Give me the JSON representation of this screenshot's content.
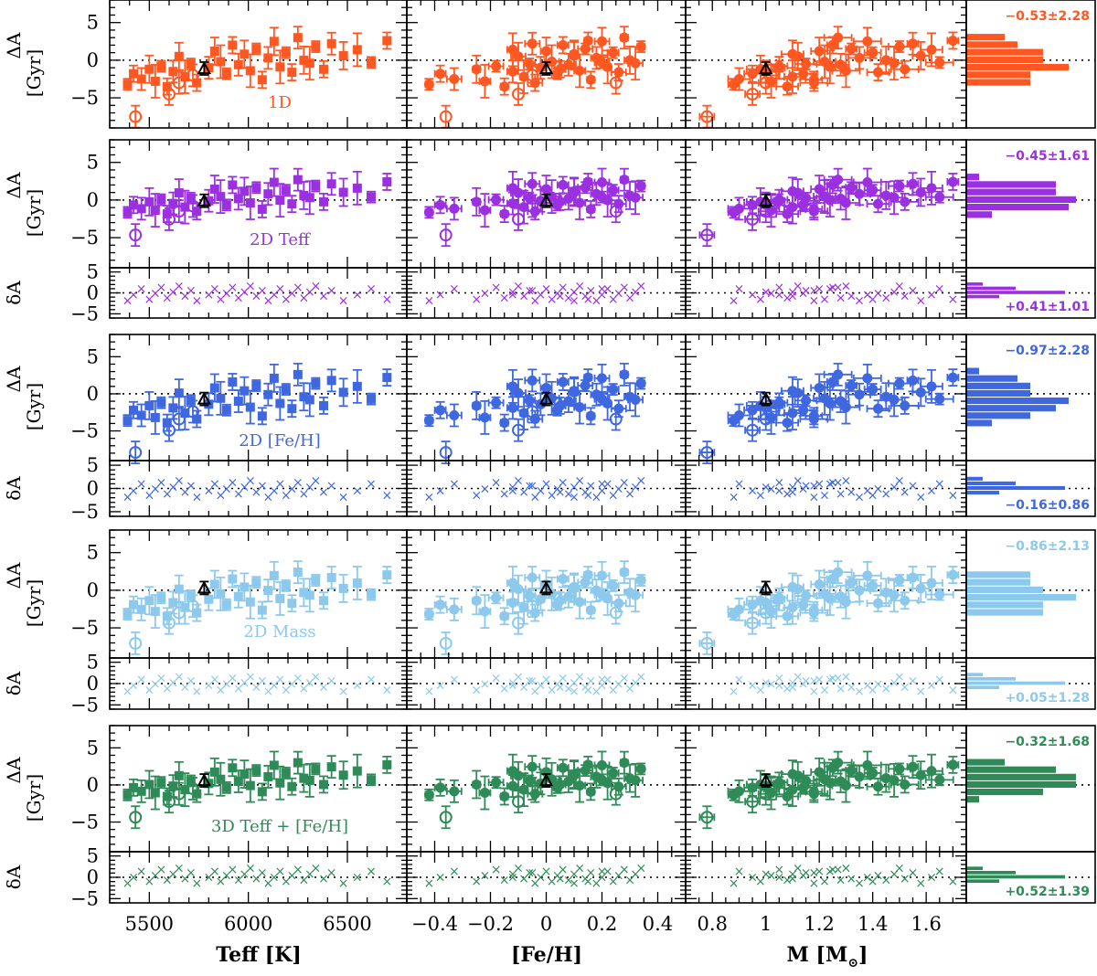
{
  "colors": {
    "1D": "#ff5722",
    "2D_Teff": "#9b30e0",
    "2D_FeH": "#3f67e0",
    "2D_Mass": "#8cc9ec",
    "3D": "#2e8b57",
    "sun": "#000000"
  },
  "xlabels": {
    "teff": "Teff [K]",
    "feh": "[Fe/H]",
    "mass": "M [M",
    "mass_suffix": "]",
    "sun_symbol": "⊙"
  },
  "ylabels": {
    "DeltaA": "ΔA",
    "unit": "[Gyr]",
    "deltaA": "δA"
  },
  "ticks": {
    "teff": [
      "5500",
      "6000",
      "6500"
    ],
    "feh": [
      "−0.4",
      "−0.2",
      "0",
      "0.2",
      "0.4"
    ],
    "mass": [
      "0.8",
      "1",
      "1.2",
      "1.4",
      "1.6"
    ],
    "DeltaA": [
      "5",
      "0",
      "−5"
    ],
    "deltaA": [
      "5",
      "0",
      "−5"
    ]
  },
  "rows": [
    {
      "key": "1D",
      "label": "1D",
      "delta_stat": "−0.53±2.28",
      "resid_stat": ""
    },
    {
      "key": "2D_Teff",
      "label": "2D Teff",
      "delta_stat": "−0.45±1.61",
      "resid_stat": "+0.41±1.01"
    },
    {
      "key": "2D_FeH",
      "label": "2D [Fe/H]",
      "delta_stat": "−0.97±2.28",
      "resid_stat": "−0.16±0.86"
    },
    {
      "key": "2D_Mass",
      "label": "2D Mass",
      "delta_stat": "−0.86±2.13",
      "resid_stat": "+0.05±1.28"
    },
    {
      "key": "3D",
      "label": "3D Teff + [Fe/H]",
      "delta_stat": "−0.32±1.68",
      "resid_stat": "+0.52±1.39"
    }
  ],
  "chart_data": [
    {
      "type": "scatter",
      "description_of_axes": "Columns share x axes; each model row has a ΔA panel and (except 1D) a δA residual panel plus marginal histograms",
      "x_axes": {
        "teff": {
          "label": "Teff [K]",
          "range": [
            5300,
            6800
          ],
          "ticks": [
            5500,
            6000,
            6500
          ]
        },
        "feh": {
          "label": "[Fe/H]",
          "range": [
            -0.5,
            0.5
          ],
          "ticks": [
            -0.4,
            -0.2,
            0,
            0.2,
            0.4
          ]
        },
        "mass": {
          "label": "M [M⊙]",
          "range": [
            0.7,
            1.75
          ],
          "ticks": [
            0.8,
            1.0,
            1.2,
            1.4,
            1.6
          ]
        }
      },
      "y_axes": {
        "DeltaA": {
          "label": "ΔA [Gyr]",
          "range": [
            -9,
            8
          ],
          "ticks": [
            -5,
            0,
            5
          ]
        },
        "deltaA": {
          "label": "δA",
          "range": [
            -6,
            6
          ],
          "ticks": [
            -5,
            0,
            5
          ]
        }
      },
      "series": [
        {
          "name": "1D",
          "DeltaA_mean_std": "−0.53±2.28"
        },
        {
          "name": "2D Teff",
          "DeltaA_mean_std": "−0.45±1.61",
          "deltaA_mean_std": "+0.41±1.01"
        },
        {
          "name": "2D [Fe/H]",
          "DeltaA_mean_std": "−0.97±2.28",
          "deltaA_mean_std": "−0.16±0.86"
        },
        {
          "name": "2D Mass",
          "DeltaA_mean_std": "−0.86±2.13",
          "deltaA_mean_std": "+0.05±1.28"
        },
        {
          "name": "3D Teff + [Fe/H]",
          "DeltaA_mean_std": "−0.32±1.68",
          "deltaA_mean_std": "+0.52±1.39"
        }
      ],
      "stars": [
        {
          "teff": 5390,
          "feh": -0.42,
          "mass": 0.88,
          "dA": -3.2
        },
        {
          "teff": 5420,
          "feh": -0.38,
          "mass": 0.95,
          "dA": -1.8
        },
        {
          "teff": 5460,
          "feh": -0.33,
          "mass": 0.9,
          "dA": -2.5
        },
        {
          "teff": 5500,
          "feh": -0.25,
          "mass": 0.98,
          "dA": -1.2
        },
        {
          "teff": 5530,
          "feh": -0.22,
          "mass": 1.02,
          "dA": -2.8
        },
        {
          "teff": 5560,
          "feh": -0.18,
          "mass": 1.05,
          "dA": -0.8
        },
        {
          "teff": 5590,
          "feh": -0.15,
          "mass": 1.08,
          "dA": -3.5
        },
        {
          "teff": 5620,
          "feh": -0.12,
          "mass": 1.0,
          "dA": -1.5
        },
        {
          "teff": 5650,
          "feh": -0.1,
          "mass": 1.12,
          "dA": 0.5
        },
        {
          "teff": 5680,
          "feh": -0.08,
          "mass": 1.1,
          "dA": -2.2
        },
        {
          "teff": 5710,
          "feh": -0.06,
          "mass": 1.15,
          "dA": -0.5
        },
        {
          "teff": 5740,
          "feh": -0.04,
          "mass": 1.18,
          "dA": -3.0
        },
        {
          "teff": 5800,
          "feh": -0.02,
          "mass": 1.05,
          "dA": -1.0
        },
        {
          "teff": 5830,
          "feh": 0.0,
          "mass": 1.2,
          "dA": 1.2
        },
        {
          "teff": 5860,
          "feh": 0.02,
          "mass": 1.22,
          "dA": -0.2
        },
        {
          "teff": 5890,
          "feh": 0.04,
          "mass": 1.14,
          "dA": -1.8
        },
        {
          "teff": 5920,
          "feh": 0.06,
          "mass": 1.25,
          "dA": 2.0
        },
        {
          "teff": 5950,
          "feh": 0.08,
          "mass": 1.28,
          "dA": -0.6
        },
        {
          "teff": 5980,
          "feh": 0.1,
          "mass": 1.1,
          "dA": 0.8
        },
        {
          "teff": 6010,
          "feh": 0.12,
          "mass": 1.3,
          "dA": -1.4
        },
        {
          "teff": 6040,
          "feh": 0.14,
          "mass": 1.32,
          "dA": 1.5
        },
        {
          "teff": 6070,
          "feh": 0.16,
          "mass": 1.18,
          "dA": -2.6
        },
        {
          "teff": 6100,
          "feh": 0.18,
          "mass": 1.35,
          "dA": 0.3
        },
        {
          "teff": 6130,
          "feh": 0.2,
          "mass": 1.38,
          "dA": 2.5
        },
        {
          "teff": 6160,
          "feh": 0.22,
          "mass": 1.24,
          "dA": -0.9
        },
        {
          "teff": 6190,
          "feh": 0.24,
          "mass": 1.4,
          "dA": 1.0
        },
        {
          "teff": 6220,
          "feh": 0.26,
          "mass": 1.42,
          "dA": -1.6
        },
        {
          "teff": 6250,
          "feh": 0.28,
          "mass": 1.27,
          "dA": 3.0
        },
        {
          "teff": 6280,
          "feh": 0.3,
          "mass": 1.45,
          "dA": 0.0
        },
        {
          "teff": 6310,
          "feh": 0.32,
          "mass": 1.48,
          "dA": -0.4
        },
        {
          "teff": 6340,
          "feh": 0.34,
          "mass": 1.5,
          "dA": 1.8
        },
        {
          "teff": 6380,
          "feh": 0.05,
          "mass": 1.52,
          "dA": -1.2
        },
        {
          "teff": 6420,
          "feh": -0.05,
          "mass": 1.55,
          "dA": 2.2
        },
        {
          "teff": 6480,
          "feh": 0.1,
          "mass": 1.58,
          "dA": 0.6
        },
        {
          "teff": 6550,
          "feh": -0.12,
          "mass": 1.62,
          "dA": 1.4
        },
        {
          "teff": 6620,
          "feh": 0.2,
          "mass": 1.65,
          "dA": -0.3
        },
        {
          "teff": 6700,
          "feh": 0.15,
          "mass": 1.7,
          "dA": 2.6
        }
      ],
      "open_circles": [
        {
          "teff": 5430,
          "feh": -0.36,
          "mass": 0.78,
          "dA": -7.5
        },
        {
          "teff": 5600,
          "feh": -0.1,
          "mass": 0.95,
          "dA": -4.5
        },
        {
          "teff": 5650,
          "feh": 0.25,
          "mass": 1.0,
          "dA": -3.0
        },
        {
          "teff": 5720,
          "feh": -0.05,
          "mass": 1.02,
          "dA": -2.0
        }
      ],
      "sun": {
        "teff": 5777,
        "feh": 0.0,
        "mass": 1.0,
        "dA": {
          "1D": -1.1,
          "2D_Teff": -0.1,
          "2D_FeH": -0.7,
          "2D_Mass": 0.3,
          "3D": 0.6
        }
      },
      "row_offsets": {
        "1D": 0.0,
        "2D_Teff": 0.6,
        "2D_FeH": -0.4,
        "2D_Mass": -0.3,
        "3D": 0.9
      },
      "row_scales": {
        "1D": 1.0,
        "2D_Teff": 0.7,
        "2D_FeH": 1.0,
        "2D_Mass": 0.9,
        "3D": 0.7
      }
    }
  ]
}
